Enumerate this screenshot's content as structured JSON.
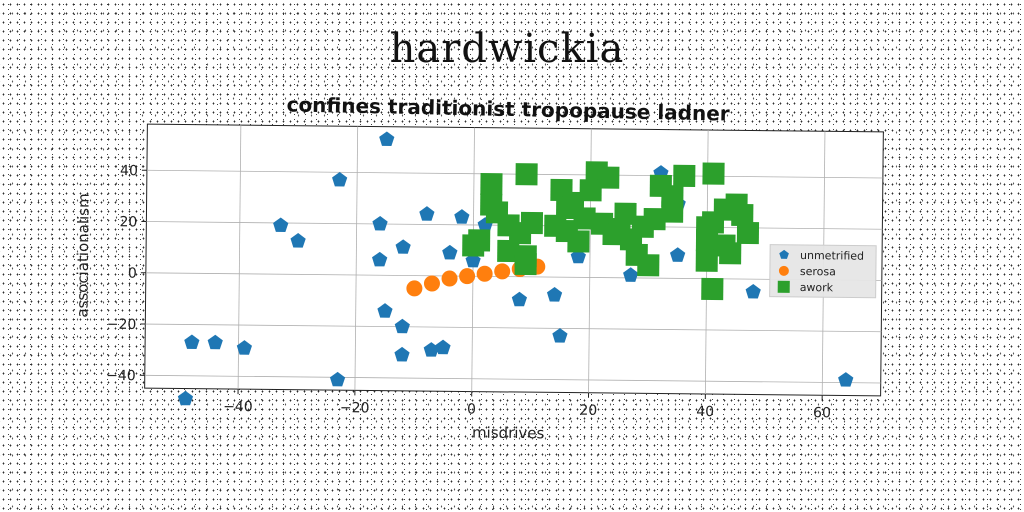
{
  "page_title": "hardwickia",
  "chart_data": {
    "type": "scatter",
    "title": "confines traditionist tropopause ladner",
    "xlabel": "misdrives",
    "ylabel": "associationalism",
    "xlim": [
      -56,
      70
    ],
    "ylim": [
      -45,
      58
    ],
    "xticks": [
      -40,
      -20,
      0,
      20,
      40,
      60
    ],
    "yticks": [
      -40,
      -20,
      0,
      20,
      40
    ],
    "grid": true,
    "legend_position": "right",
    "colors": {
      "unmetrified": "#1f77b4",
      "serosa": "#ff7f0e",
      "awork": "#2ca02c"
    },
    "series": [
      {
        "name": "unmetrified",
        "marker": "pentagon",
        "x": [
          -15,
          -23,
          -33,
          -30,
          -16,
          -16,
          -12,
          -8,
          -2,
          -4,
          0,
          2,
          -49,
          -48,
          -44,
          -39,
          -23,
          -15,
          -12,
          -12,
          -7,
          -5,
          8,
          14,
          18,
          27,
          32,
          35,
          35,
          40,
          48,
          64,
          15
        ],
        "y": [
          53,
          37,
          19,
          13,
          20,
          6,
          11,
          24,
          23,
          9,
          6,
          20,
          -49,
          -27,
          -27,
          -29,
          -41,
          -14,
          -20,
          -31,
          -29,
          -28,
          -9,
          -7,
          8,
          1,
          41,
          29,
          9,
          12,
          -5,
          -39,
          -23
        ]
      },
      {
        "name": "serosa",
        "marker": "circle",
        "x": [
          -10,
          -7,
          -4,
          -1,
          2,
          5,
          8,
          11
        ],
        "y": [
          -5,
          -3,
          -1,
          0,
          1,
          2,
          3,
          4
        ]
      },
      {
        "name": "awork",
        "marker": "square",
        "x": [
          3,
          9,
          3,
          4,
          6,
          10,
          0,
          1,
          6,
          9,
          9,
          15,
          17,
          21,
          23,
          16,
          19,
          16,
          18,
          22,
          24,
          27,
          26,
          25,
          29,
          30,
          32,
          34,
          34,
          28,
          31,
          36,
          41,
          43,
          45,
          41,
          40,
          44,
          47,
          43,
          40,
          46,
          41,
          8,
          20,
          14,
          40
        ],
        "y": [
          36,
          40,
          28,
          25,
          20,
          21,
          12,
          14,
          10,
          8,
          5,
          34,
          29,
          41,
          39,
          27,
          23,
          18,
          14,
          21,
          17,
          15,
          25,
          19,
          20,
          5,
          36,
          32,
          26,
          9,
          23,
          40,
          41,
          27,
          29,
          22,
          15,
          10,
          18,
          13,
          7,
          25,
          -4,
          17,
          34,
          20,
          20
        ]
      }
    ]
  }
}
